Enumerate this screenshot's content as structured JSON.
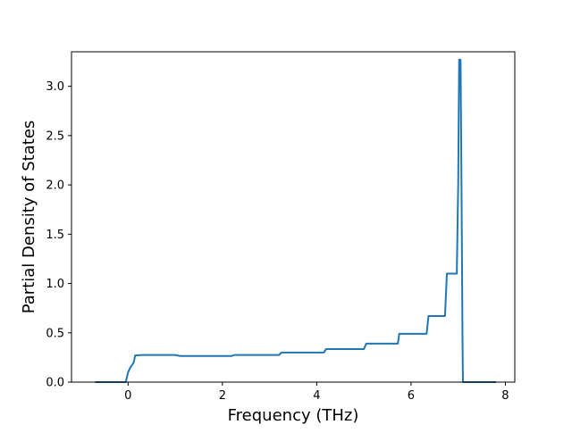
{
  "chart_data": {
    "type": "line",
    "xlabel": "Frequency (THz)",
    "ylabel": "Partial Density of States",
    "xlim": [
      -1.2,
      8.2
    ],
    "ylim": [
      0.0,
      3.35
    ],
    "xticks": [
      0,
      2,
      4,
      6,
      8
    ],
    "yticks": [
      0.0,
      0.5,
      1.0,
      1.5,
      2.0,
      2.5,
      3.0
    ],
    "xtick_labels": [
      "0",
      "2",
      "4",
      "6",
      "8"
    ],
    "ytick_labels": [
      "0.0",
      "0.5",
      "1.0",
      "1.5",
      "2.0",
      "2.5",
      "3.0"
    ],
    "grid": false,
    "line_color": "#1f77b4",
    "series": [
      {
        "x": [
          -0.7,
          -0.05,
          0.0,
          0.05,
          0.12,
          0.15,
          0.3,
          1.0,
          1.1,
          2.2,
          2.25,
          3.2,
          3.25,
          4.15,
          4.2,
          5.0,
          5.05,
          5.72,
          5.75,
          6.33,
          6.37,
          6.72,
          6.76,
          6.97,
          7.0,
          7.02,
          7.05,
          7.07,
          7.09,
          7.1,
          7.2,
          7.8
        ],
        "y": [
          0.0,
          0.0,
          0.1,
          0.15,
          0.2,
          0.27,
          0.275,
          0.275,
          0.265,
          0.265,
          0.275,
          0.275,
          0.3,
          0.3,
          0.335,
          0.335,
          0.39,
          0.39,
          0.49,
          0.49,
          0.67,
          0.67,
          1.1,
          1.1,
          2.0,
          3.27,
          3.27,
          2.0,
          0.5,
          0.0,
          0.0,
          0.0
        ]
      }
    ]
  }
}
